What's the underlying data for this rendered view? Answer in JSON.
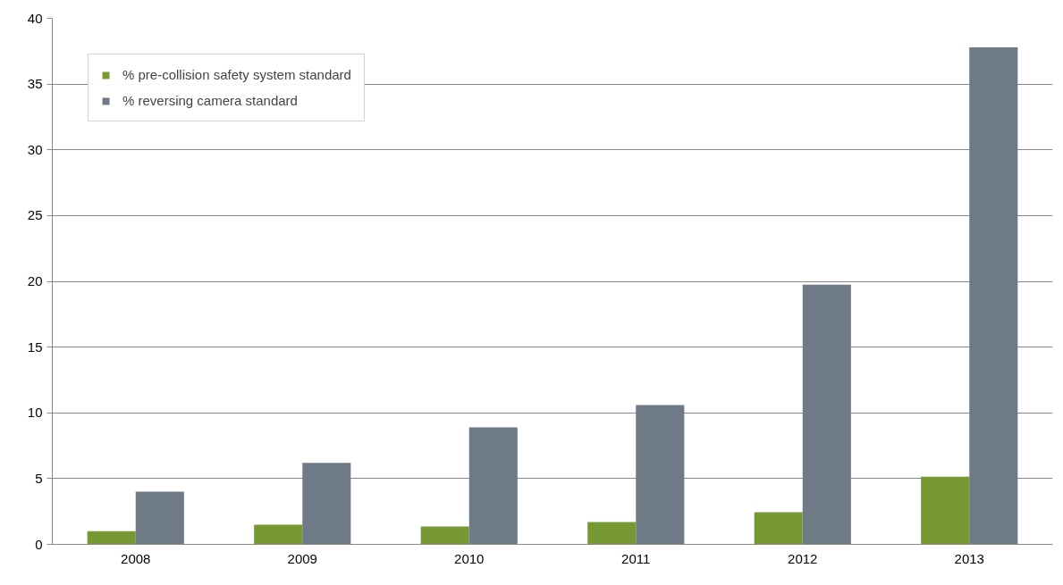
{
  "chart_data": {
    "type": "bar",
    "categories": [
      "2008",
      "2009",
      "2010",
      "2011",
      "2012",
      "2013"
    ],
    "series": [
      {
        "name": "% pre-collision safety system standard",
        "color": "#779933",
        "values": [
          1.0,
          1.5,
          1.35,
          1.7,
          2.45,
          5.15
        ]
      },
      {
        "name": "% reversing camera standard",
        "color": "#6e7a86",
        "values": [
          4.0,
          6.2,
          8.9,
          10.6,
          19.75,
          37.8
        ]
      }
    ],
    "ylim": [
      0,
      40
    ],
    "yticks": [
      0,
      5,
      10,
      15,
      20,
      25,
      30,
      35,
      40
    ],
    "grid": "y",
    "legend": "top left"
  }
}
